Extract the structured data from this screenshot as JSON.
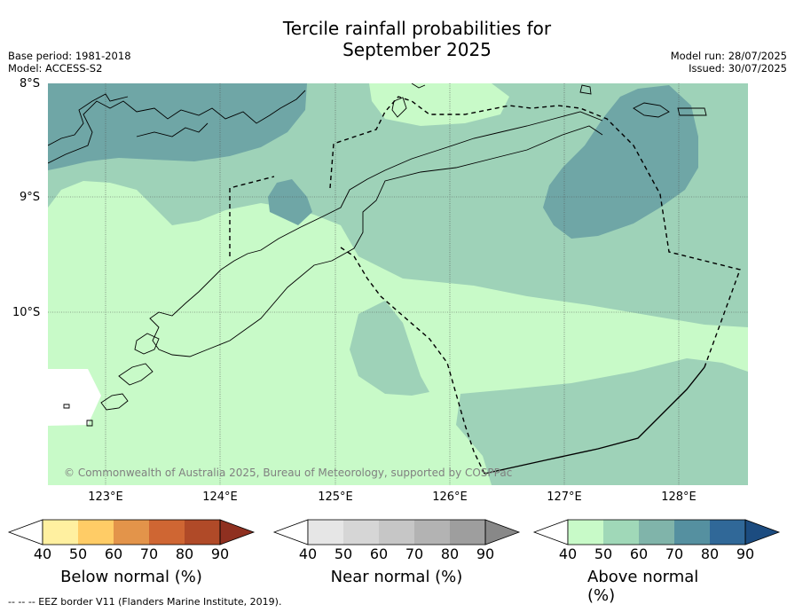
{
  "title": "Tercile rainfall probabilities for September 2025",
  "title_line1": "Tercile rainfall probabilities for",
  "title_line2": "September 2025",
  "meta": {
    "base_period": "Base period: 1981-2018",
    "model": "Model: ACCESS-S2",
    "model_run": "Model run: 28/07/2025",
    "issued": "Issued: 30/07/2025"
  },
  "map": {
    "latitude_labels": [
      "8°S",
      "9°S",
      "10°S"
    ],
    "longitude_labels": [
      "123°E",
      "124°E",
      "125°E",
      "126°E",
      "127°E",
      "128°E"
    ],
    "copyright": "© Commonwealth of Australia 2025, Bureau of Meteorology, supported by COSPPac",
    "colors": {
      "above_40_50": "#c8fac8",
      "above_50_60": "#9ed2b8",
      "above_60_70": "#6fa6a6",
      "ocean_blank": "#ffffff"
    }
  },
  "colorbars": [
    {
      "label": "Below normal (%)",
      "ticks": [
        "40",
        "50",
        "60",
        "70",
        "80",
        "90"
      ],
      "colors": [
        "#ffffff",
        "#fff0a0",
        "#ffcc66",
        "#e3944a",
        "#cf6633",
        "#b04a28",
        "#8f3020"
      ]
    },
    {
      "label": "Near normal (%)",
      "ticks": [
        "40",
        "50",
        "60",
        "70",
        "80",
        "90"
      ],
      "colors": [
        "#ffffff",
        "#e6e6e6",
        "#d6d6d6",
        "#c6c6c6",
        "#b3b3b3",
        "#9e9e9e",
        "#888888"
      ]
    },
    {
      "label": "Above normal (%)",
      "ticks": [
        "40",
        "50",
        "60",
        "70",
        "80",
        "90"
      ],
      "colors": [
        "#ffffff",
        "#c8fac8",
        "#a0d8b8",
        "#80b4aa",
        "#5590a0",
        "#306898",
        "#1c4c80"
      ]
    }
  ],
  "footnote": "--  --  -- EEZ border V11 (Flanders Marine Institute, 2019)."
}
